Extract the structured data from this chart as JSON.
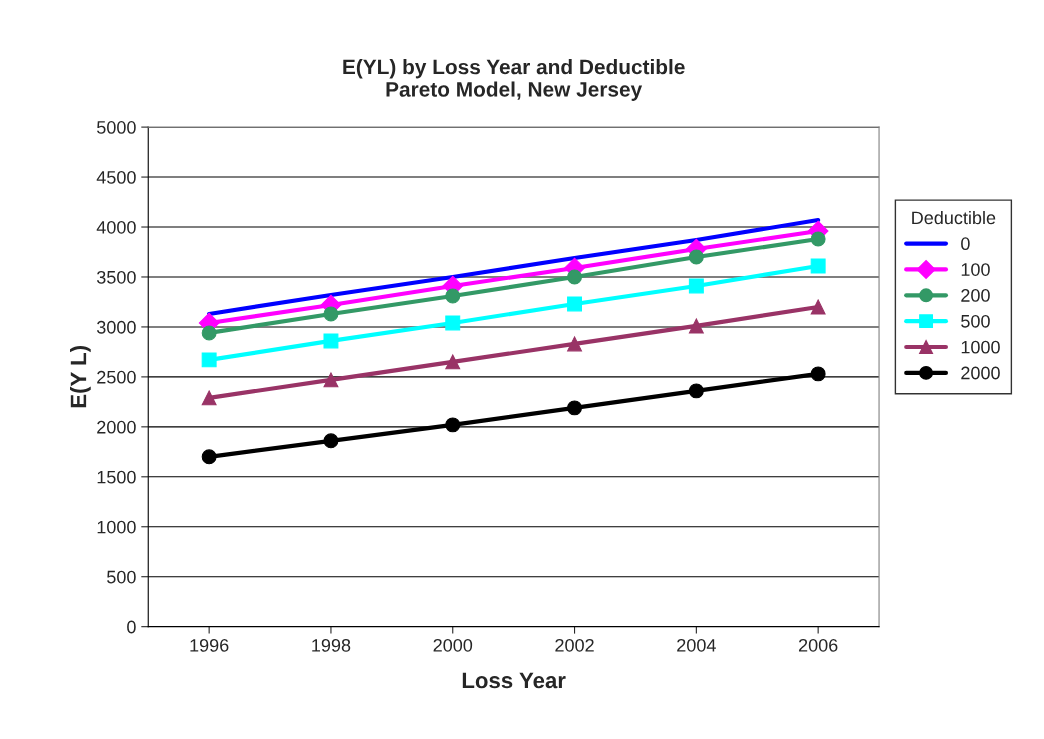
{
  "chart_data": {
    "type": "line",
    "title": "E(YL) by Loss Year and Deductible\nPareto Model, New Jersey",
    "xlabel": "Loss Year",
    "ylabel": "E(Y L)",
    "legend_title": "Deductible",
    "categories": [
      "1996",
      "1998",
      "2000",
      "2002",
      "2004",
      "2006"
    ],
    "series": [
      {
        "name": "0",
        "color": "#0000ff",
        "marker": "none",
        "values": [
          3130,
          3320,
          3500,
          3690,
          3870,
          4070
        ]
      },
      {
        "name": "100",
        "color": "#ff00ff",
        "marker": "diamond",
        "values": [
          3040,
          3220,
          3410,
          3590,
          3780,
          3960
        ]
      },
      {
        "name": "200",
        "color": "#339966",
        "marker": "circle",
        "values": [
          2940,
          3130,
          3310,
          3500,
          3700,
          3880
        ]
      },
      {
        "name": "500",
        "color": "#00ffff",
        "marker": "square",
        "values": [
          2670,
          2860,
          3040,
          3230,
          3410,
          3610
        ]
      },
      {
        "name": "1000",
        "color": "#993366",
        "marker": "triangle",
        "values": [
          2290,
          2470,
          2650,
          2830,
          3010,
          3200
        ]
      },
      {
        "name": "2000",
        "color": "#000000",
        "marker": "circle",
        "values": [
          1700,
          1860,
          2020,
          2190,
          2360,
          2530
        ]
      }
    ],
    "ylim": [
      0,
      5000
    ],
    "yticks": [
      0,
      500,
      1000,
      1500,
      2000,
      2500,
      3000,
      3500,
      4000,
      4500,
      5000
    ],
    "grid": "y",
    "legend": "right",
    "line_style": "solid"
  }
}
